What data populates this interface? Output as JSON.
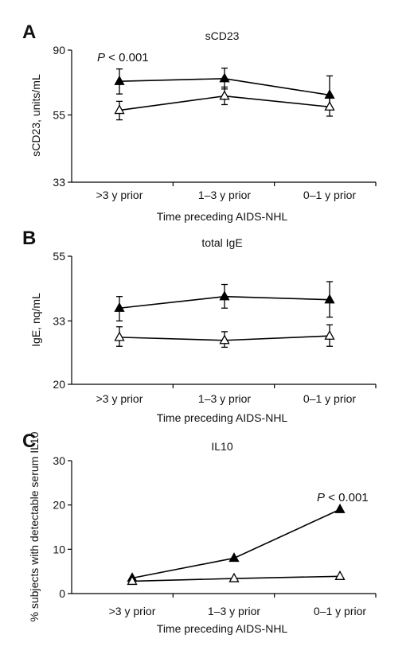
{
  "chart_data": [
    {
      "type": "line",
      "panel_label": "A",
      "title": "sCD23",
      "xlabel": "Time preceding AIDS-NHL",
      "ylabel": "sCD23, units/mL",
      "categories": [
        ">3 y prior",
        "1–3 y prior",
        "0–1 y prior"
      ],
      "y_scale": "log",
      "ylim": [
        33,
        90
      ],
      "yticks": [
        33,
        55,
        90
      ],
      "annotation": {
        "text": "P < 0.001",
        "category": ">3 y prior"
      },
      "legend": "none",
      "grid": false,
      "series": [
        {
          "marker": "filled-triangle",
          "values": [
            71,
            72.5,
            64
          ],
          "err_low": [
            64.5,
            67,
            57.5
          ],
          "err_high": [
            78,
            78.5,
            74
          ]
        },
        {
          "marker": "open-triangle",
          "values": [
            57,
            63.5,
            58.5
          ],
          "err_low": [
            53,
            59.5,
            54.5
          ],
          "err_high": [
            61,
            68,
            64
          ]
        }
      ]
    },
    {
      "type": "line",
      "panel_label": "B",
      "title": "total IgE",
      "xlabel": "Time preceding AIDS-NHL",
      "ylabel": "IgE, nq/mL",
      "categories": [
        ">3 y prior",
        "1–3 y prior",
        "0–1 y prior"
      ],
      "y_scale": "log",
      "ylim": [
        20,
        55
      ],
      "yticks": [
        20,
        33,
        55
      ],
      "legend": "none",
      "grid": false,
      "series": [
        {
          "marker": "filled-triangle",
          "values": [
            36.5,
            40,
            39
          ],
          "err_low": [
            33,
            36.5,
            34
          ],
          "err_high": [
            40,
            44,
            45
          ]
        },
        {
          "marker": "open-triangle",
          "values": [
            29,
            28.3,
            29.3
          ],
          "err_low": [
            27,
            26.8,
            27
          ],
          "err_high": [
            31.5,
            30.3,
            32
          ]
        }
      ]
    },
    {
      "type": "line",
      "panel_label": "C",
      "title": "IL10",
      "xlabel": "Time preceding AIDS-NHL",
      "ylabel": "% subjects with detectable serum IL10",
      "categories": [
        ">3 y prior",
        "1–3 y prior",
        "0–1 y prior"
      ],
      "ylim": [
        0,
        30
      ],
      "yticks": [
        0,
        10,
        20,
        30
      ],
      "annotation": {
        "text": "P < 0.001",
        "category": "0–1 y prior"
      },
      "legend": "none",
      "grid": false,
      "series": [
        {
          "marker": "filled-triangle",
          "values": [
            3.5,
            8,
            19
          ]
        },
        {
          "marker": "open-triangle",
          "values": [
            2.8,
            3.4,
            3.9
          ]
        }
      ]
    }
  ]
}
